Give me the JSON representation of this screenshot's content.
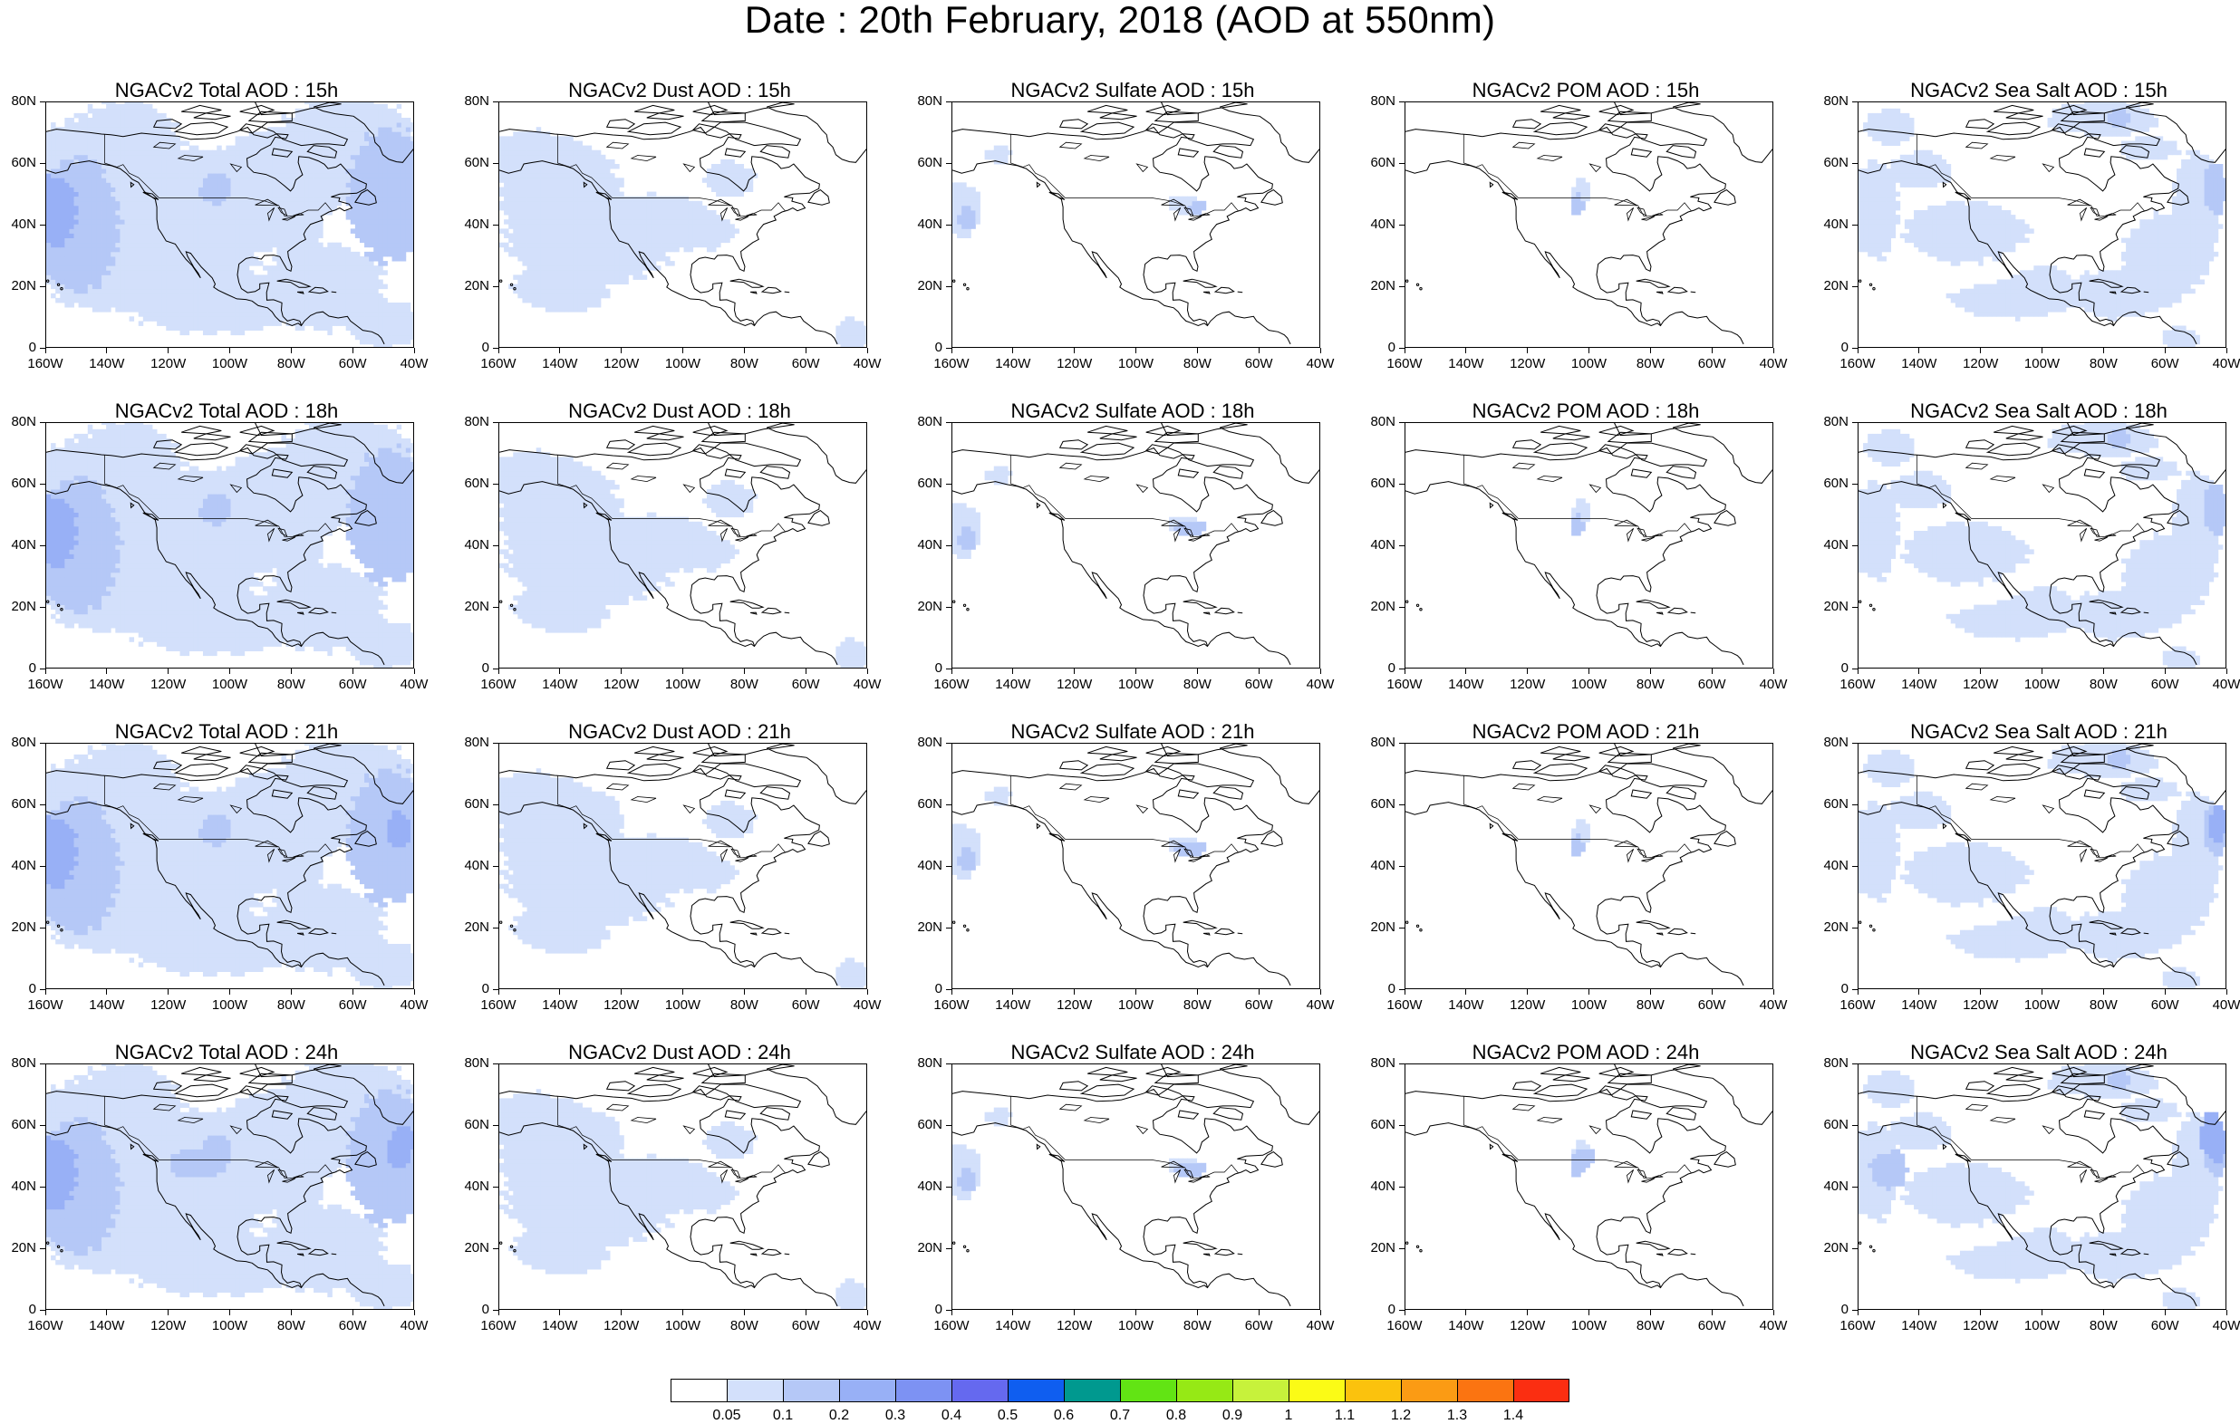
{
  "title": "Date : 20th February, 2018 (AOD at 550nm)",
  "axes": {
    "lat_ticks": [
      "80N",
      "60N",
      "40N",
      "20N",
      "0"
    ],
    "lon_ticks": [
      "160W",
      "140W",
      "120W",
      "100W",
      "80W",
      "60W",
      "40W"
    ]
  },
  "columns": [
    {
      "key": "total",
      "name": "NGACv2 Total AOD"
    },
    {
      "key": "dust",
      "name": "NGACv2 Dust AOD"
    },
    {
      "key": "sulfate",
      "name": "NGACv2 Sulfate AOD"
    },
    {
      "key": "pom",
      "name": "NGACv2 POM AOD"
    },
    {
      "key": "seasalt",
      "name": "NGACv2 Sea Salt AOD"
    }
  ],
  "panels": [
    [
      "NGACv2 Total AOD : 15h",
      "NGACv2 Dust AOD : 15h",
      "NGACv2 Sulfate AOD : 15h",
      "NGACv2 POM AOD : 15h",
      "NGACv2 Sea Salt AOD : 15h"
    ],
    [
      "NGACv2 Total AOD : 18h",
      "NGACv2 Dust AOD : 18h",
      "NGACv2 Sulfate AOD : 18h",
      "NGACv2 POM AOD : 18h",
      "NGACv2 Sea Salt AOD : 18h"
    ],
    [
      "NGACv2 Total AOD : 21h",
      "NGACv2 Dust AOD : 21h",
      "NGACv2 Sulfate AOD : 21h",
      "NGACv2 POM AOD : 21h",
      "NGACv2 Sea Salt AOD : 21h"
    ],
    [
      "NGACv2 Total AOD : 24h",
      "NGACv2 Dust AOD : 24h",
      "NGACv2 Sulfate AOD : 24h",
      "NGACv2 POM AOD : 24h",
      "NGACv2 Sea Salt  AOD : 24h"
    ]
  ],
  "colorbar": {
    "labels": [
      "0.05",
      "0.1",
      "0.2",
      "0.3",
      "0.4",
      "0.5",
      "0.6",
      "0.7",
      "0.8",
      "0.9",
      "1",
      "1.1",
      "1.2",
      "1.3",
      "1.4"
    ],
    "colors": [
      "#ffffff",
      "#d3e0fb",
      "#b5c8f7",
      "#98b0f6",
      "#7d92f3",
      "#6569ef",
      "#0f5ef0",
      "#00998f",
      "#62e414",
      "#96e915",
      "#c7f23b",
      "#fbfb16",
      "#fbc20d",
      "#fb9b14",
      "#fb7411",
      "#fb2e11"
    ]
  },
  "chart_data": {
    "type": "heatmap",
    "title": "Date : 20th February, 2018 (AOD at 550nm)",
    "x_axis": {
      "range": [
        -160,
        -40
      ],
      "ticks": [
        "160W",
        "140W",
        "120W",
        "100W",
        "80W",
        "60W",
        "40W"
      ]
    },
    "y_axis": {
      "range": [
        0,
        80
      ],
      "ticks": [
        "80N",
        "60N",
        "40N",
        "20N",
        "0"
      ]
    },
    "times": [
      "15h",
      "18h",
      "21h",
      "24h"
    ],
    "variables": [
      "Total AOD",
      "Dust AOD",
      "Sulfate AOD",
      "POM AOD",
      "Sea Salt AOD"
    ],
    "levels": [
      0.05,
      0.1,
      0.2,
      0.3,
      0.4,
      0.5,
      0.6,
      0.7,
      0.8,
      0.9,
      1,
      1.1,
      1.2,
      1.3,
      1.4
    ]
  }
}
